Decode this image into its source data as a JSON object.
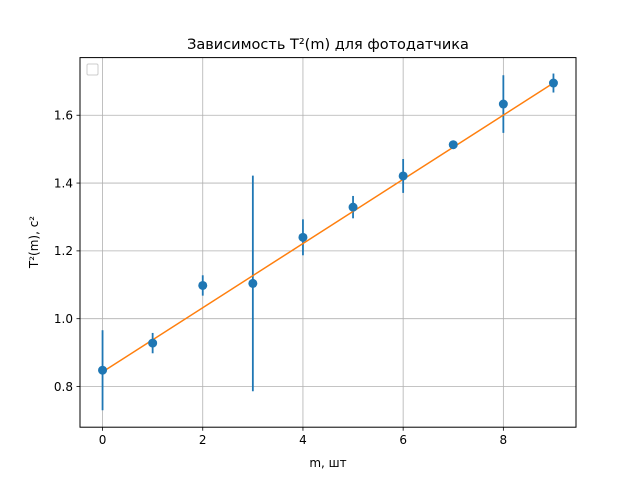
{
  "chart_data": {
    "type": "scatter",
    "title": "Зависимость T²(m) для фотодатчика",
    "xlabel": "m, шт",
    "ylabel": "T²(m), с²",
    "xlim": [
      -0.45,
      9.45
    ],
    "ylim": [
      0.68,
      1.77
    ],
    "xticks": [
      0,
      2,
      4,
      6,
      8
    ],
    "yticks": [
      0.8,
      1.0,
      1.2,
      1.4,
      1.6
    ],
    "xtick_labels": [
      "0",
      "2",
      "4",
      "6",
      "8"
    ],
    "ytick_labels": [
      "0.8",
      "1.0",
      "1.2",
      "1.4",
      "1.6"
    ],
    "grid": true,
    "legend": "top-left, empty",
    "points": {
      "x": [
        0,
        1,
        2,
        3,
        4,
        5,
        6,
        7,
        8,
        9
      ],
      "y": [
        0.848,
        0.928,
        1.098,
        1.104,
        1.24,
        1.329,
        1.421,
        1.513,
        1.633,
        1.695
      ],
      "yerr": [
        0.118,
        0.03,
        0.03,
        0.318,
        0.053,
        0.033,
        0.05,
        0.01,
        0.085,
        0.028
      ],
      "color": "#1f77b4"
    },
    "fit": {
      "x": [
        0,
        9
      ],
      "y": [
        0.843,
        1.695
      ],
      "color": "#ff7f0e"
    }
  }
}
